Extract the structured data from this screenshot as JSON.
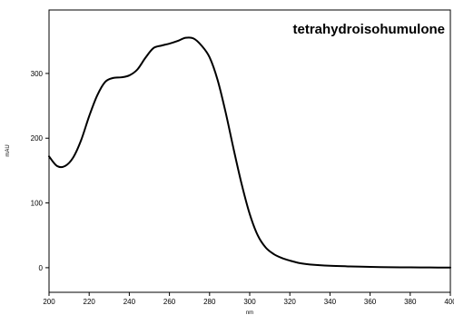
{
  "chart_data": {
    "type": "line",
    "title": "tetrahydroisohumulone",
    "xlabel": "nm",
    "ylabel": "mAU",
    "xlim": [
      200,
      400
    ],
    "ylim": [
      -38,
      398
    ],
    "xticks": [
      200,
      220,
      240,
      260,
      280,
      300,
      320,
      340,
      360,
      380,
      400
    ],
    "yticks": [
      0,
      100,
      200,
      300
    ],
    "grid": false,
    "series": [
      {
        "x": [
          200,
          204,
          208,
          212,
          216,
          220,
          224,
          228,
          232,
          236,
          240,
          244,
          248,
          252,
          256,
          260,
          264,
          268,
          272,
          276,
          280,
          284,
          288,
          292,
          296,
          300,
          304,
          308,
          312,
          316,
          320,
          325,
          330,
          340,
          350,
          360,
          370,
          380,
          390,
          400
        ],
        "y": [
          172,
          157,
          157,
          170,
          197,
          234,
          266,
          287,
          293,
          294,
          297,
          306,
          324,
          339,
          343,
          346,
          350,
          355,
          354,
          343,
          325,
          290,
          240,
          183,
          129,
          83,
          50,
          31,
          21,
          15,
          11,
          7,
          5,
          3,
          2,
          1.2,
          0.8,
          0.5,
          0.3,
          0.2
        ]
      }
    ]
  }
}
